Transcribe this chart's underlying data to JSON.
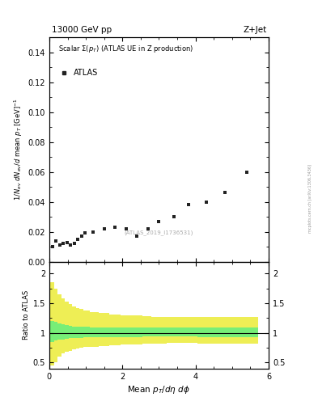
{
  "title_left": "13000 GeV pp",
  "title_right": "Z+Jet",
  "legend_label": "ATLAS",
  "ref_label": "(ATLAS_2019_I1736531)",
  "watermark": "mcplots.cern.ch [arXiv:1306.3436]",
  "main_xlim": [
    0,
    6
  ],
  "main_ylim": [
    0,
    0.15
  ],
  "ratio_ylim": [
    0.4,
    2.2
  ],
  "data_x": [
    0.08,
    0.18,
    0.28,
    0.38,
    0.48,
    0.58,
    0.68,
    0.78,
    0.88,
    0.98,
    1.2,
    1.5,
    1.8,
    2.1,
    2.4,
    2.7,
    3.0,
    3.4,
    3.8,
    4.3,
    4.8,
    5.4
  ],
  "data_y": [
    0.01,
    0.014,
    0.011,
    0.012,
    0.013,
    0.011,
    0.012,
    0.015,
    0.017,
    0.019,
    0.02,
    0.022,
    0.023,
    0.022,
    0.017,
    0.022,
    0.027,
    0.03,
    0.038,
    0.04,
    0.046,
    0.06
  ],
  "ratio_x_edges": [
    0.03,
    0.13,
    0.23,
    0.33,
    0.43,
    0.53,
    0.63,
    0.73,
    0.83,
    0.93,
    1.1,
    1.35,
    1.65,
    1.95,
    2.25,
    2.55,
    2.8,
    3.2,
    3.6,
    4.05,
    4.55,
    5.1,
    5.7
  ],
  "ratio_green_lo": [
    0.85,
    0.87,
    0.88,
    0.89,
    0.9,
    0.91,
    0.91,
    0.92,
    0.92,
    0.93,
    0.93,
    0.93,
    0.93,
    0.93,
    0.93,
    0.94,
    0.94,
    0.94,
    0.94,
    0.93,
    0.93,
    0.93
  ],
  "ratio_green_hi": [
    1.2,
    1.18,
    1.16,
    1.14,
    1.13,
    1.12,
    1.11,
    1.11,
    1.1,
    1.1,
    1.09,
    1.09,
    1.09,
    1.09,
    1.09,
    1.09,
    1.09,
    1.09,
    1.09,
    1.09,
    1.09,
    1.09
  ],
  "ratio_yellow_lo": [
    0.45,
    0.5,
    0.6,
    0.65,
    0.68,
    0.7,
    0.72,
    0.74,
    0.75,
    0.76,
    0.77,
    0.78,
    0.79,
    0.8,
    0.81,
    0.82,
    0.82,
    0.83,
    0.83,
    0.82,
    0.82,
    0.82
  ],
  "ratio_yellow_hi": [
    1.85,
    1.75,
    1.65,
    1.58,
    1.52,
    1.48,
    1.45,
    1.42,
    1.4,
    1.38,
    1.35,
    1.33,
    1.31,
    1.3,
    1.29,
    1.28,
    1.27,
    1.27,
    1.27,
    1.27,
    1.27,
    1.27
  ],
  "marker_color": "#222222",
  "green_color": "#77ee77",
  "yellow_color": "#eeee55",
  "ref_line_color": "#000000",
  "gray_text": "#aaaaaa"
}
